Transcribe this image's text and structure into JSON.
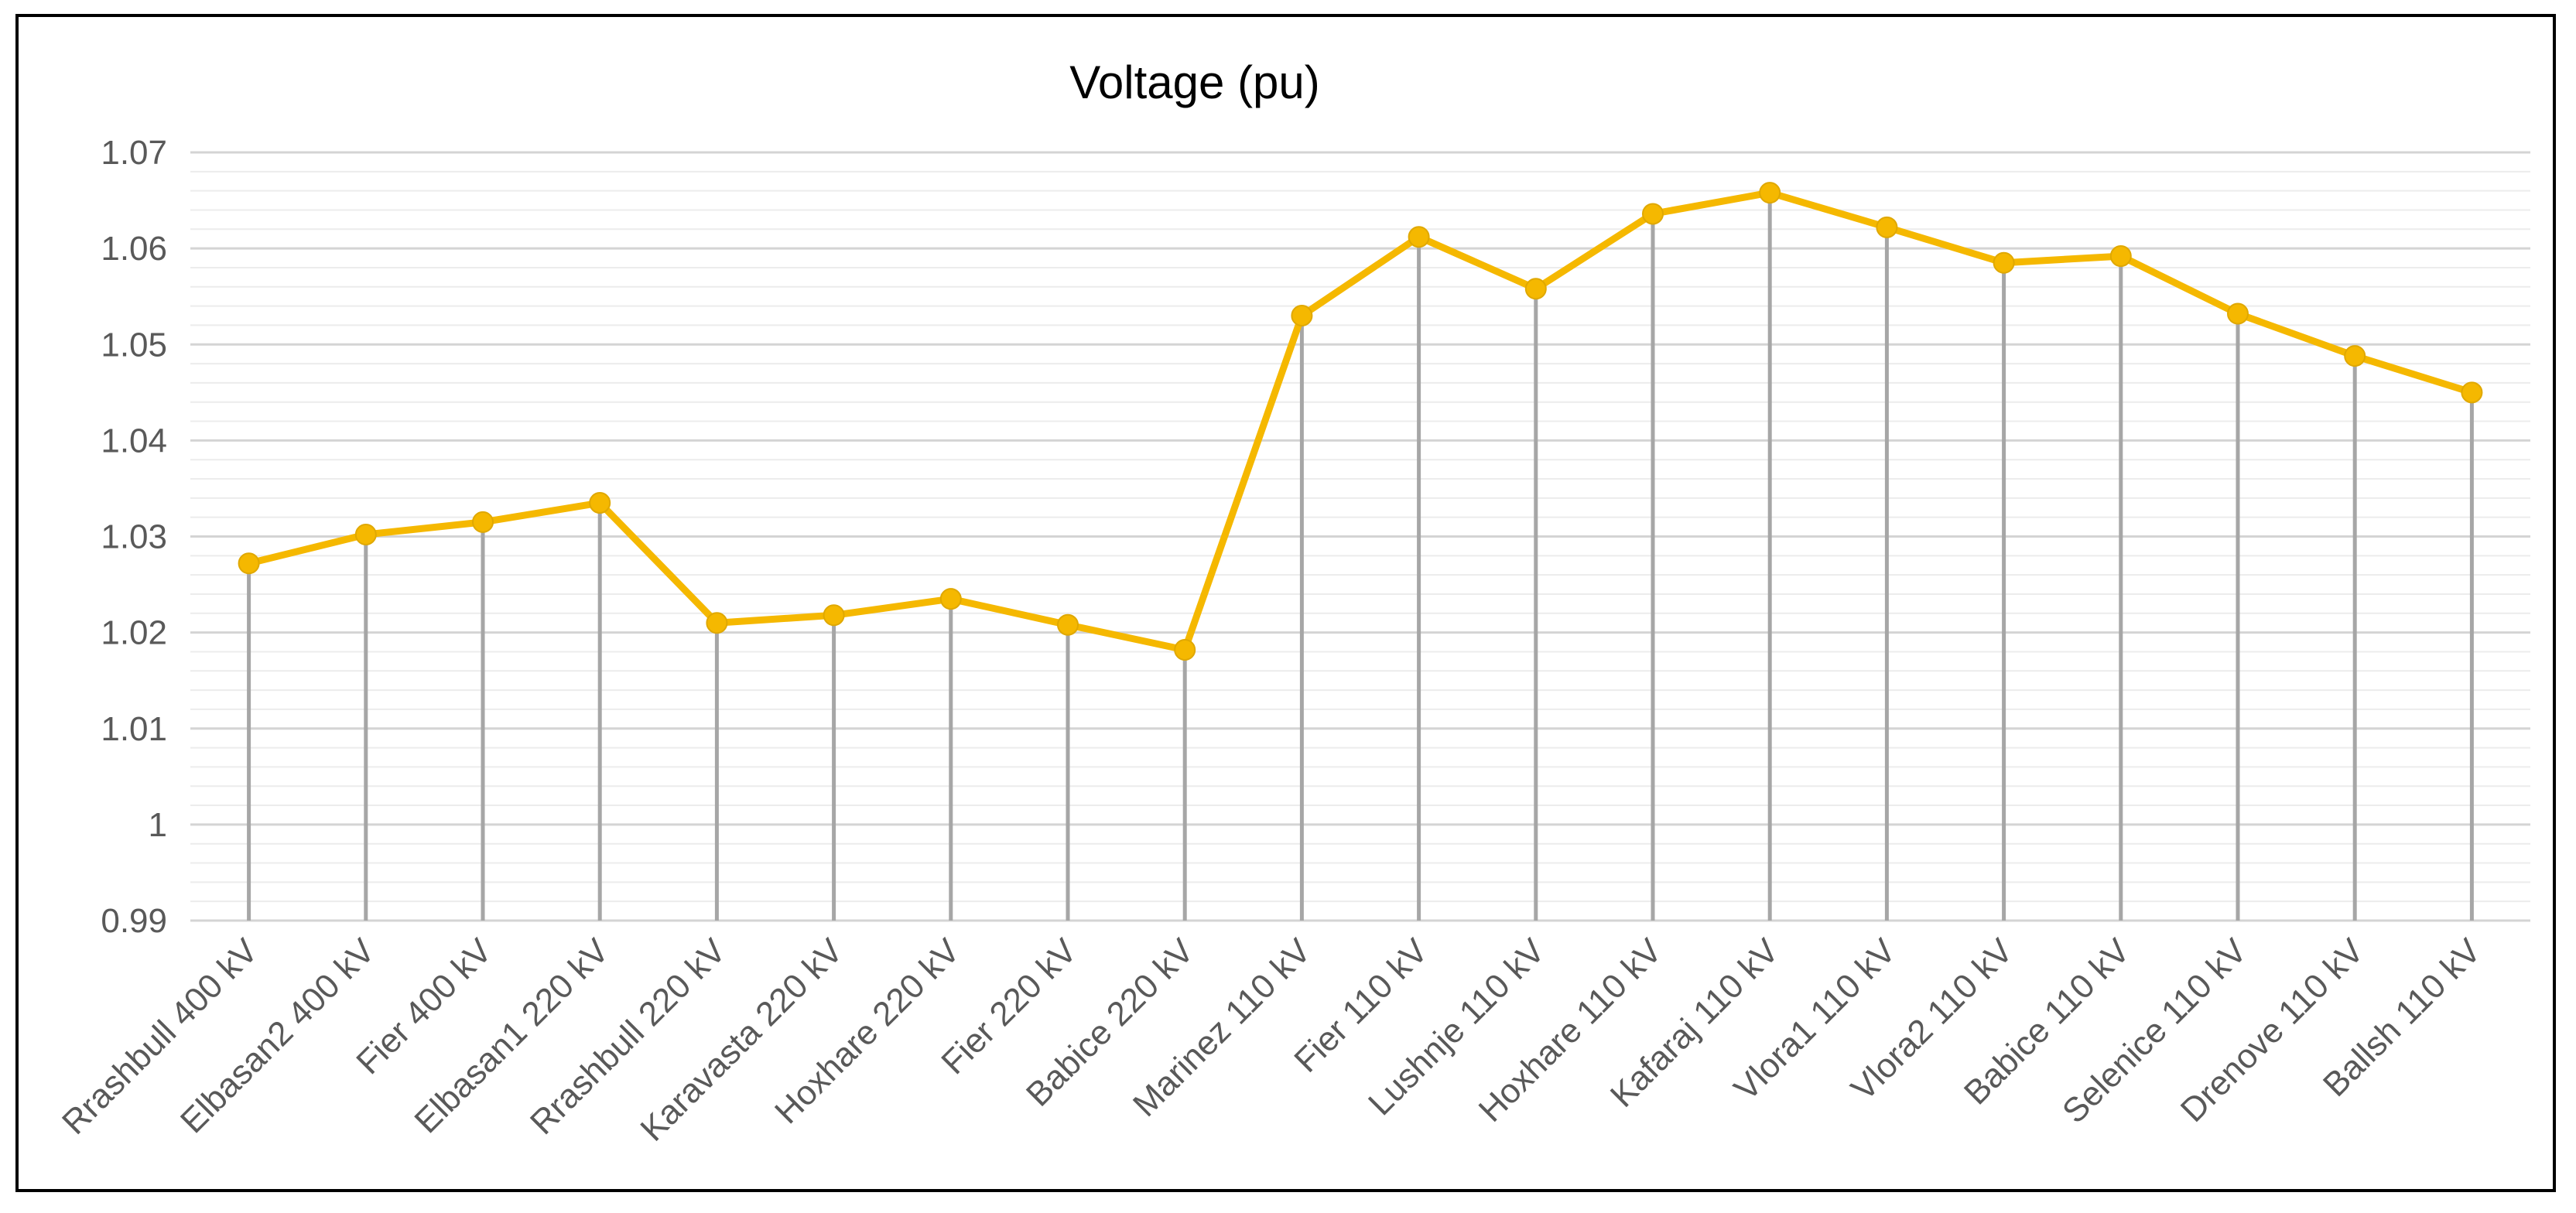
{
  "chart_data": {
    "type": "line",
    "title": "Voltage (pu)",
    "xlabel": "",
    "ylabel": "",
    "ylim": [
      0.99,
      1.07
    ],
    "yticks": [
      0.99,
      1,
      1.01,
      1.02,
      1.03,
      1.04,
      1.05,
      1.06,
      1.07
    ],
    "ytick_labels": [
      "0.99",
      "1",
      "1.01",
      "1.02",
      "1.03",
      "1.04",
      "1.05",
      "1.06",
      "1.07"
    ],
    "grid": true,
    "legend": "none",
    "drop_lines": true,
    "line_color": "#F5B800",
    "categories": [
      "Rrashbull 400 kV",
      "Elbasan2 400 kV",
      "Fier 400 kV",
      "Elbasan1 220 kV",
      "Rrashbull 220 kV",
      "Karavasta 220 kV",
      "Hoxhare 220 kV",
      "Fier 220 kV",
      "Babice 220 kV",
      "Marinez 110 kV",
      "Fier 110 kV",
      "Lushnje 110 kV",
      "Hoxhare 110 kV",
      "Kafaraj 110 kV",
      "Vlora1 110 kV",
      "Vlora2 110 kV",
      "Babice 110 kV",
      "Selenice 110 kV",
      "Drenove 110 kV",
      "Ballsh 110 kV"
    ],
    "values": [
      1.0272,
      1.0302,
      1.0315,
      1.0335,
      1.021,
      1.0218,
      1.0235,
      1.0208,
      1.0182,
      1.053,
      1.0612,
      1.0558,
      1.0636,
      1.0658,
      1.0622,
      1.0585,
      1.0592,
      1.0532,
      1.0488,
      1.045
    ]
  }
}
